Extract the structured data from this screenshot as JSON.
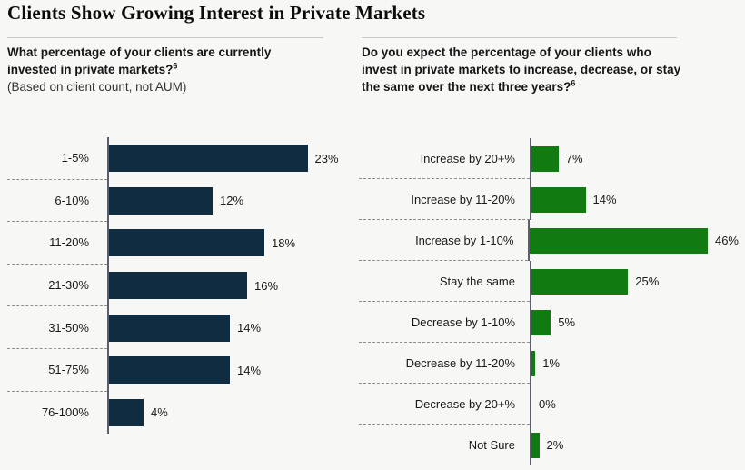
{
  "page": {
    "title": "Clients Show Growing Interest in Private Markets"
  },
  "left_panel": {
    "question": "What percentage of your clients are currently invested in private markets?",
    "superscript": "6",
    "note": "(Based on client count, not AUM)"
  },
  "right_panel": {
    "question": "Do you expect the percentage of your clients who invest in private markets to increase, decrease, or stay the same over the next three years?",
    "superscript": "6"
  },
  "colors": {
    "navy_bar": "#0f2c40",
    "green_bar": "#117a11",
    "background": "#f7f7f5",
    "axis": "#59606a",
    "row_separator": "#8f8f8f",
    "header_rule": "#c9c9c9",
    "text": "#1a1a1a"
  },
  "chart_data": [
    {
      "type": "bar",
      "orientation": "horizontal",
      "title": "What percentage of your clients are currently invested in private markets? (Based on client count, not AUM)",
      "categories": [
        "1-5%",
        "6-10%",
        "11-20%",
        "21-30%",
        "31-50%",
        "51-75%",
        "76-100%"
      ],
      "values": [
        23,
        12,
        18,
        16,
        14,
        14,
        4
      ],
      "value_labels": [
        "23%",
        "12%",
        "18%",
        "16%",
        "14%",
        "14%",
        "4%"
      ],
      "unit": "percent of respondents",
      "bar_color": "#0f2c40",
      "xlim": [
        0,
        25
      ],
      "grid": false,
      "legend": false,
      "value_label_position": "right of bar",
      "row_separators": "dashed, label side only"
    },
    {
      "type": "bar",
      "orientation": "horizontal",
      "title": "Do you expect the percentage of your clients who invest in private markets to increase, decrease, or stay the same over the next three years?",
      "categories": [
        "Increase by 20+%",
        "Increase by 11-20%",
        "Increase by 1-10%",
        "Stay the same",
        "Decrease by 1-10%",
        "Decrease by 11-20%",
        "Decrease by 20+%",
        "Not Sure"
      ],
      "values": [
        7,
        14,
        46,
        25,
        5,
        1,
        0,
        2
      ],
      "value_labels": [
        "7%",
        "14%",
        "46%",
        "25%",
        "5%",
        "1%",
        "0%",
        "2%"
      ],
      "unit": "percent of respondents",
      "bar_color": "#117a11",
      "xlim": [
        0,
        50
      ],
      "grid": false,
      "legend": false,
      "value_label_position": "right of bar",
      "row_separators": "dashed, label side only"
    }
  ]
}
